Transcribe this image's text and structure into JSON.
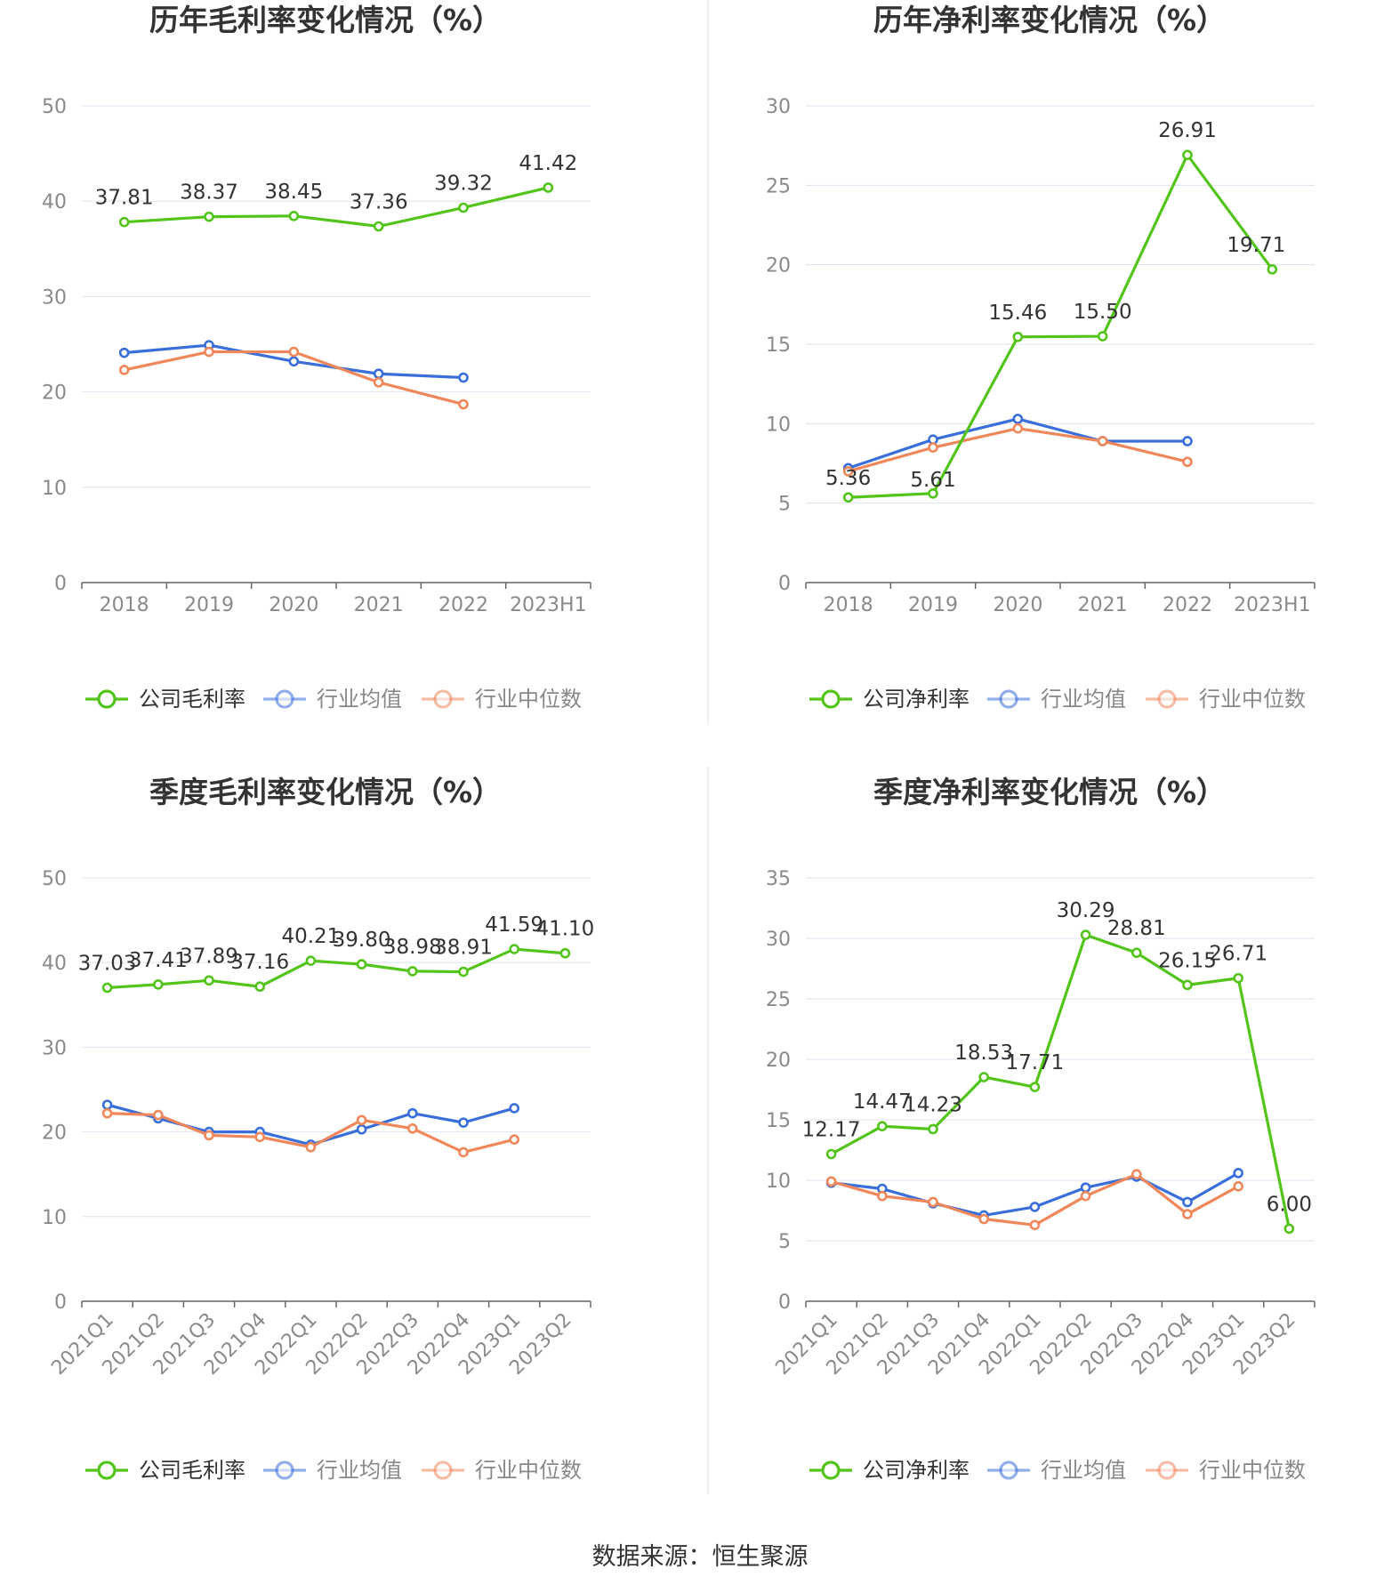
{
  "footer": "数据来源：恒生聚源",
  "colors": {
    "company": "#52C41A",
    "industry_avg": "#3A6FDB",
    "industry_median": "#F0875A",
    "grid": "#DCE3F0",
    "axis": "#666666",
    "title": "#333333",
    "label": "#333333",
    "tick": "#8A8A8A"
  },
  "chart_data": [
    {
      "type": "line",
      "title": "历年毛利率变化情况（%）",
      "categories": [
        "2018",
        "2019",
        "2020",
        "2021",
        "2022",
        "2023H1"
      ],
      "ylim": [
        0,
        50
      ],
      "yticks": [
        0,
        10,
        20,
        30,
        40,
        50
      ],
      "rotate_x_labels": false,
      "series": [
        {
          "name": "公司毛利率",
          "key": "company",
          "values": [
            37.81,
            38.37,
            38.45,
            37.36,
            39.32,
            41.42
          ],
          "labels": [
            "37.81",
            "38.37",
            "38.45",
            "37.36",
            "39.32",
            "41.42"
          ]
        },
        {
          "name": "行业均值",
          "key": "industry_avg",
          "values": [
            24.1,
            24.9,
            23.2,
            21.9,
            21.5,
            null
          ]
        },
        {
          "name": "行业中位数",
          "key": "industry_median",
          "values": [
            22.3,
            24.2,
            24.2,
            21.0,
            18.7,
            null
          ]
        }
      ]
    },
    {
      "type": "line",
      "title": "历年净利率变化情况（%）",
      "categories": [
        "2018",
        "2019",
        "2020",
        "2021",
        "2022",
        "2023H1"
      ],
      "ylim": [
        0,
        30
      ],
      "yticks": [
        0,
        5,
        10,
        15,
        20,
        25,
        30
      ],
      "rotate_x_labels": false,
      "series": [
        {
          "name": "公司净利率",
          "key": "company",
          "values": [
            5.36,
            5.61,
            15.46,
            15.5,
            26.91,
            19.71
          ],
          "labels": [
            "5.36",
            "5.61",
            "15.46",
            "15.50",
            "26.91",
            "19.71"
          ]
        },
        {
          "name": "行业均值",
          "key": "industry_avg",
          "values": [
            7.2,
            9.0,
            10.3,
            8.9,
            8.9,
            null
          ]
        },
        {
          "name": "行业中位数",
          "key": "industry_median",
          "values": [
            7.0,
            8.5,
            9.7,
            8.9,
            7.6,
            null
          ]
        }
      ]
    },
    {
      "type": "line",
      "title": "季度毛利率变化情况（%）",
      "categories": [
        "2021Q1",
        "2021Q2",
        "2021Q3",
        "2021Q4",
        "2022Q1",
        "2022Q2",
        "2022Q3",
        "2022Q4",
        "2023Q1",
        "2023Q2"
      ],
      "ylim": [
        0,
        50
      ],
      "yticks": [
        0,
        10,
        20,
        30,
        40,
        50
      ],
      "rotate_x_labels": true,
      "series": [
        {
          "name": "公司毛利率",
          "key": "company",
          "values": [
            37.03,
            37.41,
            37.89,
            37.16,
            40.21,
            39.8,
            38.98,
            38.91,
            41.59,
            41.1
          ],
          "labels": [
            "37.03",
            "37.41",
            "37.89",
            "37.16",
            "40.21",
            "39.80",
            "38.98",
            "38.91",
            "41.59",
            "41.10"
          ]
        },
        {
          "name": "行业均值",
          "key": "industry_avg",
          "values": [
            23.2,
            21.6,
            20.0,
            20.0,
            18.5,
            20.3,
            22.2,
            21.1,
            22.8,
            null
          ]
        },
        {
          "name": "行业中位数",
          "key": "industry_median",
          "values": [
            22.2,
            22.0,
            19.6,
            19.4,
            18.2,
            21.4,
            20.4,
            17.6,
            19.1,
            null
          ]
        }
      ]
    },
    {
      "type": "line",
      "title": "季度净利率变化情况（%）",
      "categories": [
        "2021Q1",
        "2021Q2",
        "2021Q3",
        "2021Q4",
        "2022Q1",
        "2022Q2",
        "2022Q3",
        "2022Q4",
        "2023Q1",
        "2023Q2"
      ],
      "ylim": [
        0,
        35
      ],
      "yticks": [
        0,
        5,
        10,
        15,
        20,
        25,
        30,
        35
      ],
      "rotate_x_labels": true,
      "series": [
        {
          "name": "公司净利率",
          "key": "company",
          "values": [
            12.17,
            14.47,
            14.23,
            18.53,
            17.71,
            30.29,
            28.81,
            26.15,
            26.71,
            6.0
          ],
          "labels": [
            "12.17",
            "14.47",
            "14.23",
            "18.53",
            "17.71",
            "30.29",
            "28.81",
            "26.15",
            "26.71",
            "6.00"
          ]
        },
        {
          "name": "行业均值",
          "key": "industry_avg",
          "values": [
            9.8,
            9.3,
            8.1,
            7.1,
            7.8,
            9.4,
            10.3,
            8.2,
            10.6,
            null
          ]
        },
        {
          "name": "行业中位数",
          "key": "industry_median",
          "values": [
            9.9,
            8.7,
            8.2,
            6.8,
            6.3,
            8.7,
            10.5,
            7.2,
            9.5,
            null
          ]
        }
      ]
    }
  ]
}
